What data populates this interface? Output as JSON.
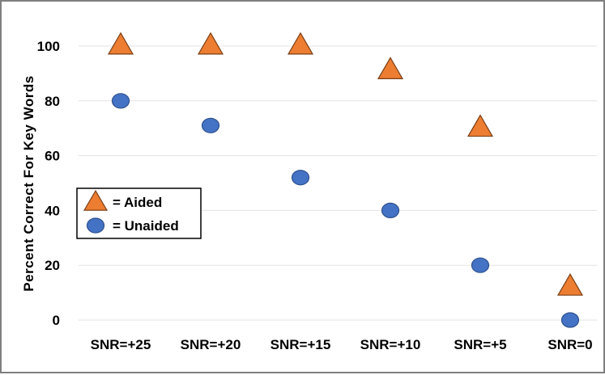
{
  "chart_data": {
    "type": "scatter",
    "categories": [
      "SNR=+25",
      "SNR=+20",
      "SNR=+15",
      "SNR=+10",
      "SNR=+5",
      "SNR=0"
    ],
    "series": [
      {
        "name": "= Aided",
        "marker": "triangle",
        "color": "#ed7d31",
        "values": [
          100,
          100,
          100,
          91,
          70,
          12
        ]
      },
      {
        "name": "= Unaided",
        "marker": "circle",
        "color": "#4472c4",
        "values": [
          80,
          71,
          52,
          40,
          20,
          0
        ]
      }
    ],
    "ylabel": "Percent Correct For Key Words",
    "xlabel": "",
    "ylim": [
      0,
      100
    ],
    "yticks": [
      0,
      20,
      40,
      60,
      80,
      100
    ],
    "grid": true,
    "legend_position": "middle-left"
  }
}
